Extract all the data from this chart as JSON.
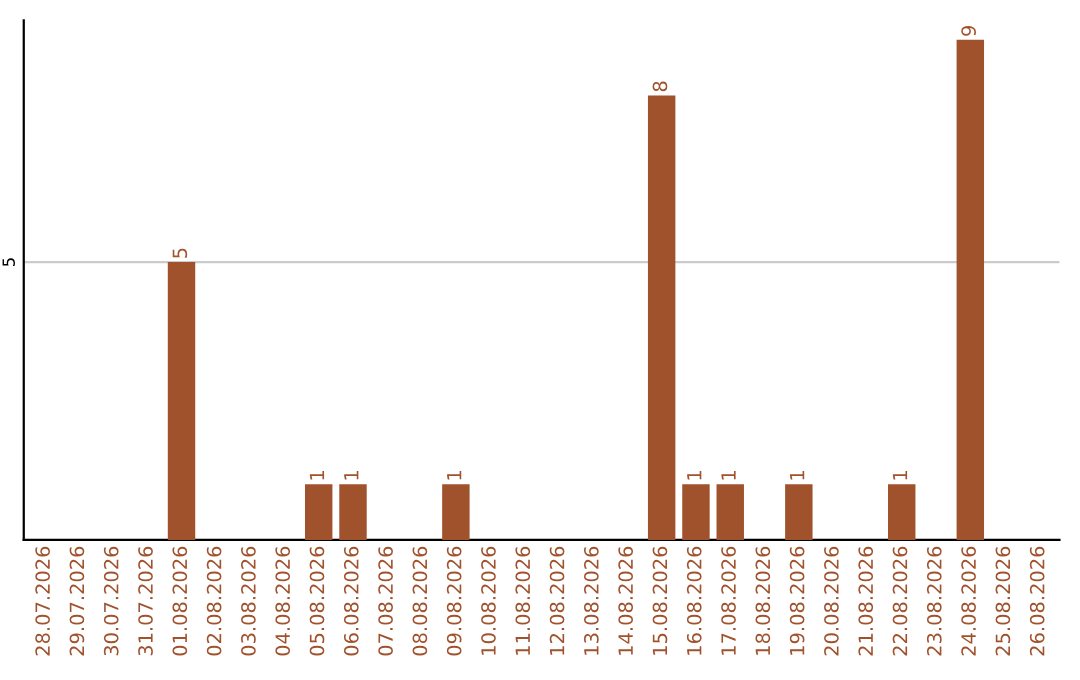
{
  "chart_data": {
    "type": "bar",
    "categories": [
      "28.07.2026",
      "29.07.2026",
      "30.07.2026",
      "31.07.2026",
      "01.08.2026",
      "02.08.2026",
      "03.08.2026",
      "04.08.2026",
      "05.08.2026",
      "06.08.2026",
      "07.08.2026",
      "08.08.2026",
      "09.08.2026",
      "10.08.2026",
      "11.08.2026",
      "12.08.2026",
      "13.08.2026",
      "14.08.2026",
      "15.08.2026",
      "16.08.2026",
      "17.08.2026",
      "18.08.2026",
      "19.08.2026",
      "20.08.2026",
      "21.08.2026",
      "22.08.2026",
      "23.08.2026",
      "24.08.2026",
      "25.08.2026",
      "26.08.2026"
    ],
    "values": [
      0,
      0,
      0,
      0,
      5,
      0,
      0,
      0,
      1,
      1,
      0,
      0,
      1,
      0,
      0,
      0,
      0,
      0,
      8,
      1,
      1,
      0,
      1,
      0,
      0,
      1,
      0,
      9,
      0,
      0
    ],
    "value_labels": [
      null,
      null,
      null,
      null,
      "5",
      null,
      null,
      null,
      "1",
      "1",
      null,
      null,
      "1",
      null,
      null,
      null,
      null,
      null,
      "8",
      "1",
      "1",
      null,
      "1",
      null,
      null,
      "1",
      null,
      "9",
      null,
      null
    ],
    "color": "#a0522d",
    "ylim": [
      0,
      9.35
    ],
    "yticks": [
      5
    ],
    "grid": "y"
  }
}
